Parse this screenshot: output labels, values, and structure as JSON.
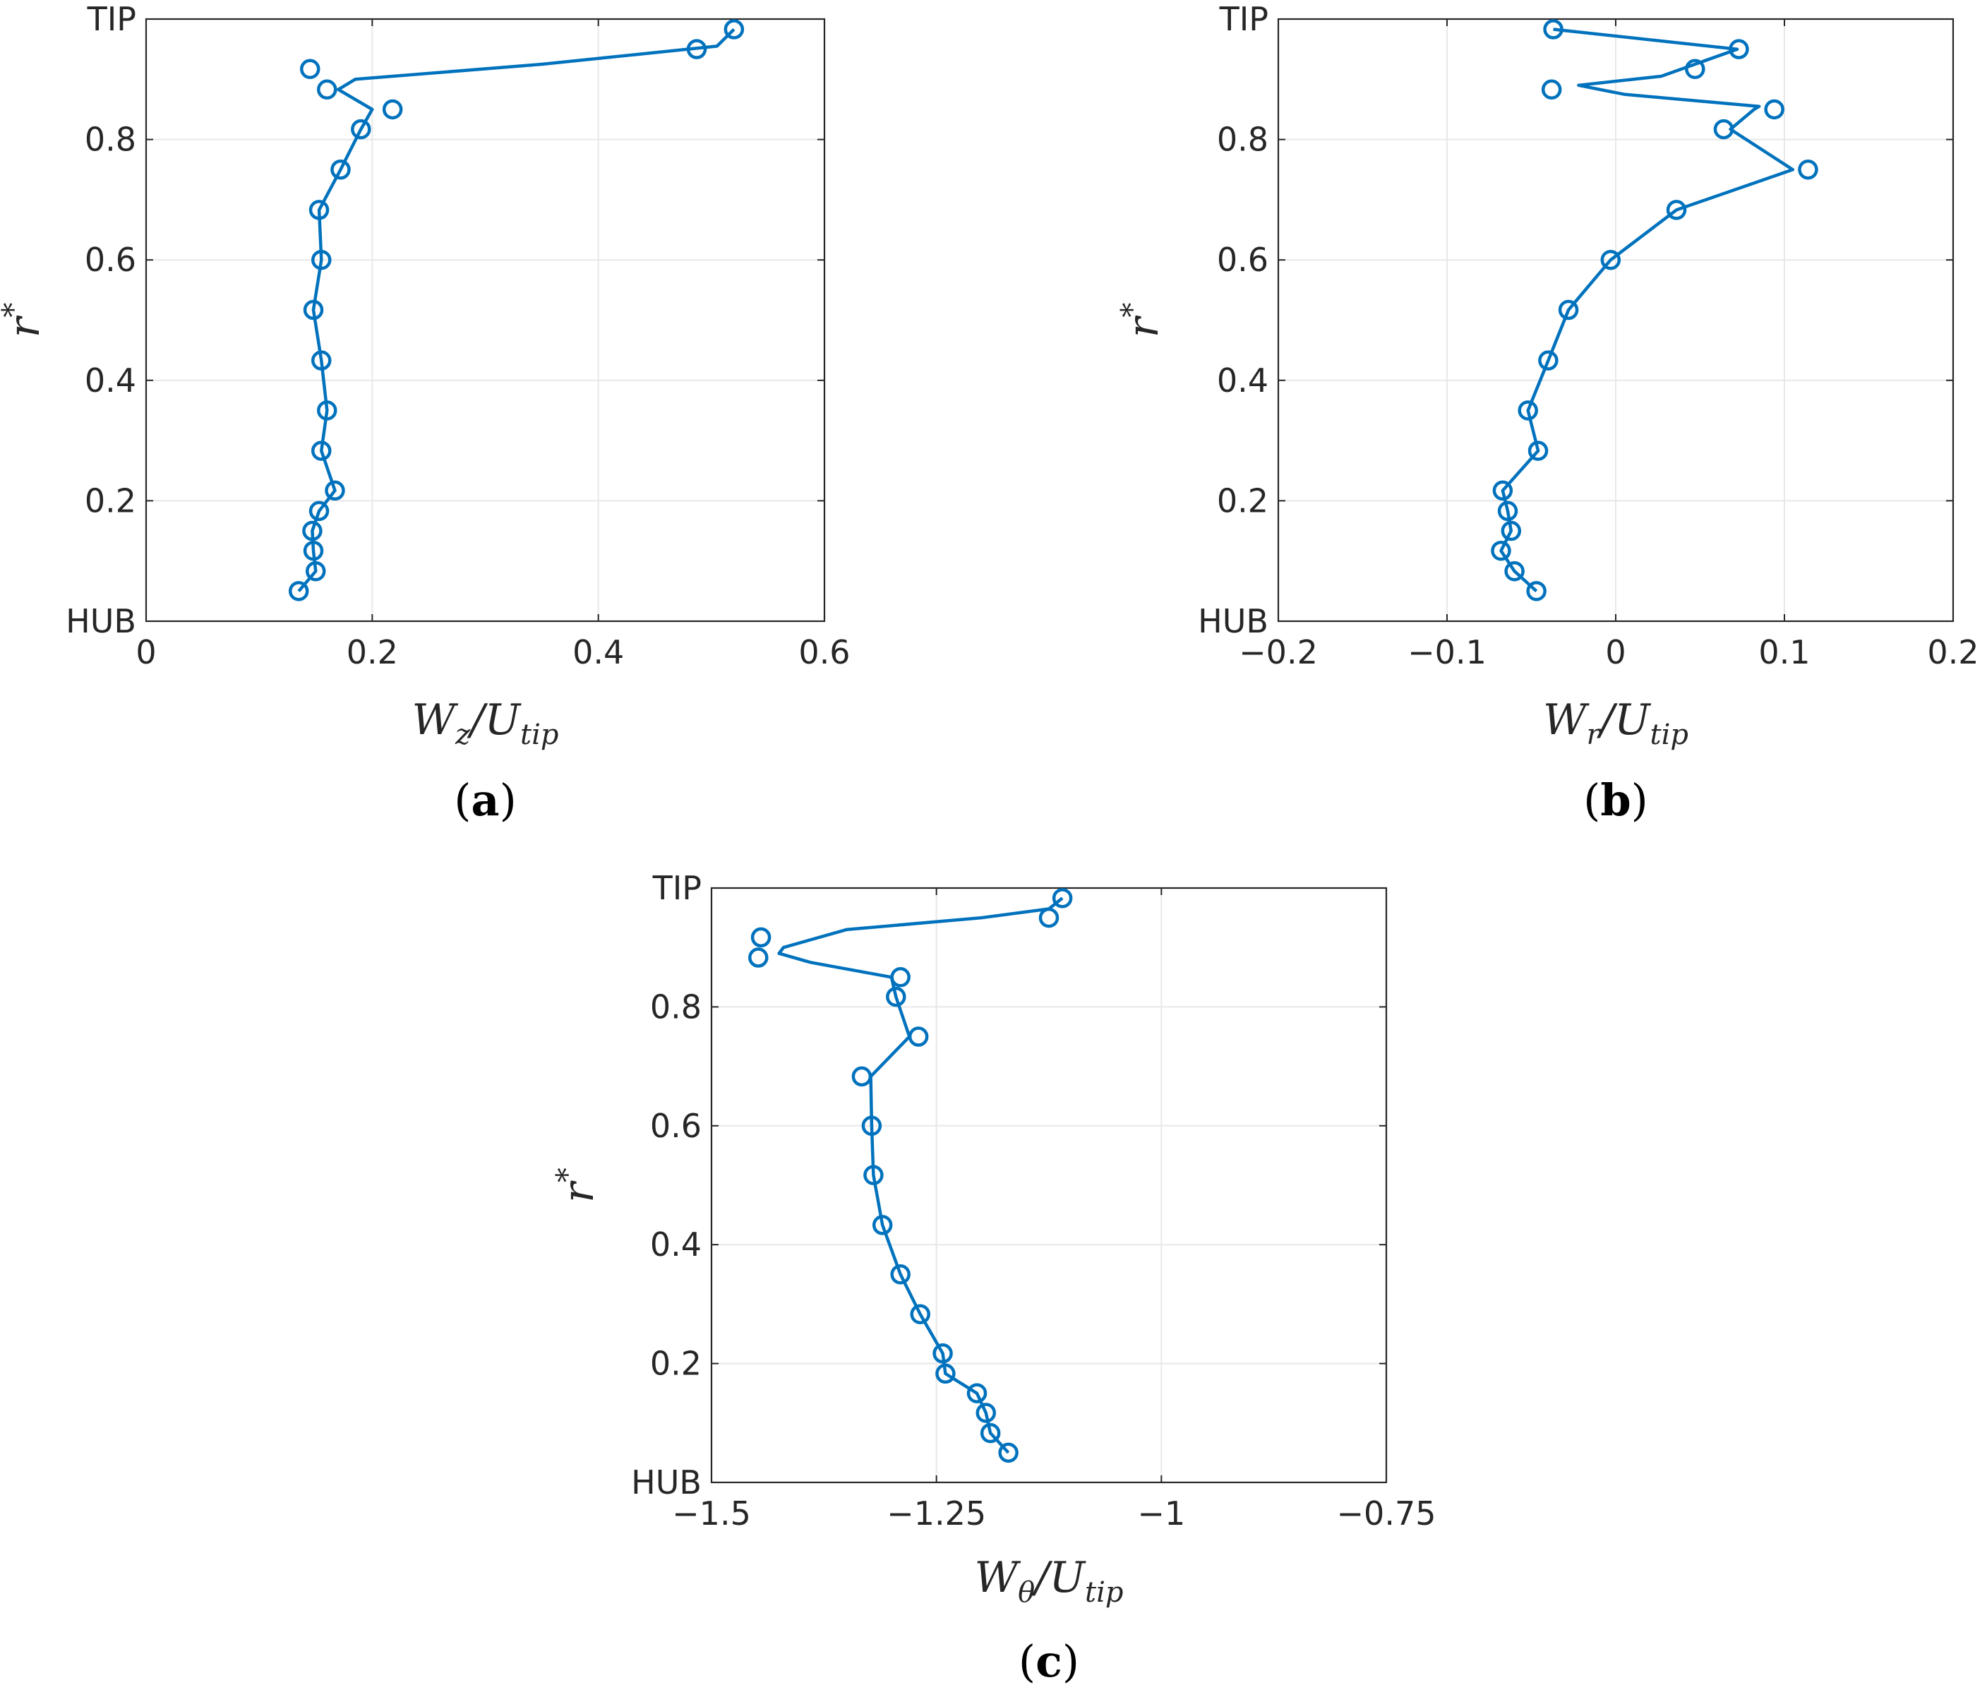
{
  "accent_color": "#0072BD",
  "chart_data": [
    {
      "id": "a",
      "type": "line",
      "markers": "open-circle",
      "grid": true,
      "caption": {
        "open": "(",
        "letter": "a",
        "close": ")"
      },
      "xlabel": {
        "main": "W",
        "sub1": "z",
        "mid": "/U",
        "sub2": "tip"
      },
      "ylabel": {
        "main": "r",
        "sup": "*"
      },
      "xlim": [
        0,
        0.6
      ],
      "ylim": [
        0,
        1
      ],
      "xticks": [
        0,
        0.2,
        0.4,
        0.6
      ],
      "xtick_labels": [
        "0",
        "0.2",
        "0.4",
        "0.6"
      ],
      "yticks": [
        0,
        0.2,
        0.4,
        0.6,
        0.8,
        1
      ],
      "ytick_labels": [
        "HUB",
        "0.2",
        "0.4",
        "0.6",
        "0.8",
        "TIP"
      ],
      "series": [
        {
          "points": [
            {
              "y": 0.05,
              "x": 0.135
            },
            {
              "y": 0.083,
              "x": 0.15
            },
            {
              "y": 0.117,
              "x": 0.148
            },
            {
              "y": 0.15,
              "x": 0.147
            },
            {
              "y": 0.183,
              "x": 0.153
            },
            {
              "y": 0.217,
              "x": 0.167
            },
            {
              "y": 0.283,
              "x": 0.155
            },
            {
              "y": 0.35,
              "x": 0.16
            },
            {
              "y": 0.433,
              "x": 0.155
            },
            {
              "y": 0.517,
              "x": 0.148
            },
            {
              "y": 0.6,
              "x": 0.155
            },
            {
              "y": 0.683,
              "x": 0.153
            },
            {
              "y": 0.75,
              "x": 0.172
            },
            {
              "y": 0.817,
              "x": 0.19
            },
            {
              "y": 0.85,
              "x": 0.218
            },
            {
              "y": 0.883,
              "x": 0.16
            },
            {
              "y": 0.917,
              "x": 0.145
            },
            {
              "y": 0.95,
              "x": 0.487
            },
            {
              "y": 0.983,
              "x": 0.52
            }
          ],
          "line": [
            [
              0.135,
              0.05
            ],
            [
              0.15,
              0.083
            ],
            [
              0.148,
              0.117
            ],
            [
              0.147,
              0.15
            ],
            [
              0.153,
              0.183
            ],
            [
              0.167,
              0.217
            ],
            [
              0.155,
              0.283
            ],
            [
              0.16,
              0.35
            ],
            [
              0.155,
              0.433
            ],
            [
              0.148,
              0.517
            ],
            [
              0.155,
              0.6
            ],
            [
              0.153,
              0.683
            ],
            [
              0.172,
              0.75
            ],
            [
              0.19,
              0.817
            ],
            [
              0.2,
              0.85
            ],
            [
              0.17,
              0.883
            ],
            [
              0.185,
              0.9
            ],
            [
              0.35,
              0.925
            ],
            [
              0.505,
              0.955
            ],
            [
              0.52,
              0.983
            ]
          ]
        }
      ]
    },
    {
      "id": "b",
      "type": "line",
      "markers": "open-circle",
      "grid": true,
      "caption": {
        "open": "(",
        "letter": "b",
        "close": ")"
      },
      "xlabel": {
        "main": "W",
        "sub1": "r",
        "mid": "/U",
        "sub2": "tip"
      },
      "ylabel": {
        "main": "r",
        "sup": "*"
      },
      "xlim": [
        -0.2,
        0.2
      ],
      "ylim": [
        0,
        1
      ],
      "xticks": [
        -0.2,
        -0.1,
        0,
        0.1,
        0.2
      ],
      "xtick_labels": [
        "−0.2",
        "−0.1",
        "0",
        "0.1",
        "0.2"
      ],
      "yticks": [
        0,
        0.2,
        0.4,
        0.6,
        0.8,
        1
      ],
      "ytick_labels": [
        "HUB",
        "0.2",
        "0.4",
        "0.6",
        "0.8",
        "TIP"
      ],
      "series": [
        {
          "points": [
            {
              "y": 0.05,
              "x": -0.047
            },
            {
              "y": 0.083,
              "x": -0.06
            },
            {
              "y": 0.117,
              "x": -0.068
            },
            {
              "y": 0.15,
              "x": -0.062
            },
            {
              "y": 0.183,
              "x": -0.064
            },
            {
              "y": 0.217,
              "x": -0.067
            },
            {
              "y": 0.283,
              "x": -0.046
            },
            {
              "y": 0.35,
              "x": -0.052
            },
            {
              "y": 0.433,
              "x": -0.04
            },
            {
              "y": 0.517,
              "x": -0.028
            },
            {
              "y": 0.6,
              "x": -0.003
            },
            {
              "y": 0.683,
              "x": 0.036
            },
            {
              "y": 0.75,
              "x": 0.114
            },
            {
              "y": 0.817,
              "x": 0.064
            },
            {
              "y": 0.85,
              "x": 0.094
            },
            {
              "y": 0.883,
              "x": -0.038
            },
            {
              "y": 0.917,
              "x": 0.047
            },
            {
              "y": 0.95,
              "x": 0.073
            },
            {
              "y": 0.983,
              "x": -0.037
            }
          ],
          "line": [
            [
              -0.047,
              0.05
            ],
            [
              -0.06,
              0.083
            ],
            [
              -0.068,
              0.117
            ],
            [
              -0.062,
              0.15
            ],
            [
              -0.064,
              0.183
            ],
            [
              -0.067,
              0.217
            ],
            [
              -0.046,
              0.283
            ],
            [
              -0.052,
              0.35
            ],
            [
              -0.04,
              0.433
            ],
            [
              -0.028,
              0.517
            ],
            [
              -0.003,
              0.6
            ],
            [
              0.036,
              0.683
            ],
            [
              0.105,
              0.75
            ],
            [
              0.068,
              0.817
            ],
            [
              0.082,
              0.85
            ],
            [
              0.085,
              0.855
            ],
            [
              0.005,
              0.875
            ],
            [
              -0.022,
              0.89
            ],
            [
              0.027,
              0.905
            ],
            [
              0.072,
              0.95
            ],
            [
              -0.037,
              0.983
            ]
          ]
        }
      ]
    },
    {
      "id": "c",
      "type": "line",
      "markers": "open-circle",
      "grid": true,
      "caption": {
        "open": "(",
        "letter": "c",
        "close": ")"
      },
      "xlabel": {
        "main": "W",
        "sub1": "θ",
        "mid": "/U",
        "sub2": "tip"
      },
      "ylabel": {
        "main": "r",
        "sup": "*"
      },
      "xlim": [
        -1.5,
        -0.75
      ],
      "ylim": [
        0,
        1
      ],
      "xticks": [
        -1.5,
        -1.25,
        -1,
        -0.75
      ],
      "xtick_labels": [
        "−1.5",
        "−1.25",
        "−1",
        "−0.75"
      ],
      "yticks": [
        0,
        0.2,
        0.4,
        0.6,
        0.8,
        1
      ],
      "ytick_labels": [
        "HUB",
        "0.2",
        "0.4",
        "0.6",
        "0.8",
        "TIP"
      ],
      "series": [
        {
          "points": [
            {
              "y": 0.05,
              "x": -1.17
            },
            {
              "y": 0.083,
              "x": -1.19
            },
            {
              "y": 0.117,
              "x": -1.195
            },
            {
              "y": 0.15,
              "x": -1.205
            },
            {
              "y": 0.183,
              "x": -1.24
            },
            {
              "y": 0.217,
              "x": -1.243
            },
            {
              "y": 0.283,
              "x": -1.268
            },
            {
              "y": 0.35,
              "x": -1.29
            },
            {
              "y": 0.433,
              "x": -1.31
            },
            {
              "y": 0.517,
              "x": -1.32
            },
            {
              "y": 0.6,
              "x": -1.322
            },
            {
              "y": 0.683,
              "x": -1.333
            },
            {
              "y": 0.75,
              "x": -1.27
            },
            {
              "y": 0.817,
              "x": -1.295
            },
            {
              "y": 0.85,
              "x": -1.29
            },
            {
              "y": 0.883,
              "x": -1.448
            },
            {
              "y": 0.917,
              "x": -1.445
            },
            {
              "y": 0.95,
              "x": -1.125
            },
            {
              "y": 0.983,
              "x": -1.11
            }
          ],
          "line": [
            [
              -1.17,
              0.05
            ],
            [
              -1.19,
              0.083
            ],
            [
              -1.195,
              0.117
            ],
            [
              -1.205,
              0.15
            ],
            [
              -1.24,
              0.183
            ],
            [
              -1.243,
              0.217
            ],
            [
              -1.268,
              0.283
            ],
            [
              -1.29,
              0.35
            ],
            [
              -1.31,
              0.433
            ],
            [
              -1.32,
              0.517
            ],
            [
              -1.322,
              0.6
            ],
            [
              -1.323,
              0.683
            ],
            [
              -1.28,
              0.75
            ],
            [
              -1.295,
              0.817
            ],
            [
              -1.3,
              0.85
            ],
            [
              -1.39,
              0.875
            ],
            [
              -1.425,
              0.89
            ],
            [
              -1.42,
              0.9
            ],
            [
              -1.35,
              0.93
            ],
            [
              -1.2,
              0.95
            ],
            [
              -1.125,
              0.965
            ],
            [
              -1.11,
              0.983
            ]
          ]
        }
      ]
    }
  ]
}
